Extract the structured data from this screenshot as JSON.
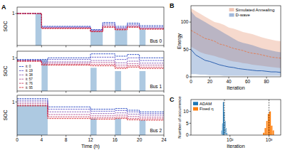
{
  "chart_data": [
    {
      "type": "step",
      "panel": "A",
      "title": "Bus 0",
      "y_label": "SOC",
      "x": [
        0,
        1,
        2,
        3,
        4,
        5,
        6,
        7,
        8,
        9,
        10,
        11,
        12,
        13,
        14,
        15,
        16,
        17,
        18,
        19,
        20,
        21,
        22,
        23,
        24
      ],
      "xlim": [
        0,
        24
      ],
      "ylim": [
        0,
        1.2
      ],
      "xticks": [
        0,
        4,
        8,
        12,
        16,
        20,
        24
      ],
      "yticks": [
        1
      ],
      "tick_labels": "y",
      "line_style": "dashed",
      "charging_periods": [
        {
          "start": 3,
          "end": 4,
          "value": 1.0
        },
        {
          "start": 12,
          "end": 14,
          "value": 0.45
        },
        {
          "start": 16,
          "end": 18,
          "value": 0.5
        },
        {
          "start": 20,
          "end": 21,
          "value": 0.5
        }
      ],
      "series": [
        {
          "color": "#1f3fbf",
          "values": [
            1,
            1,
            1,
            1,
            0.6,
            0.6,
            0.6,
            0.6,
            0.6,
            0.6,
            0.6,
            0.6,
            0.5,
            0.5,
            0.72,
            0.72,
            0.6,
            0.6,
            0.7,
            0.7,
            0.62,
            0.62,
            0.62,
            0.62,
            0.62
          ]
        },
        {
          "color": "#5a54c8",
          "values": [
            1,
            1,
            1,
            1,
            0.58,
            0.58,
            0.58,
            0.58,
            0.58,
            0.58,
            0.58,
            0.58,
            0.48,
            0.48,
            0.68,
            0.68,
            0.56,
            0.56,
            0.66,
            0.66,
            0.58,
            0.58,
            0.58,
            0.58,
            0.58
          ]
        },
        {
          "color": "#8a5ab4",
          "values": [
            1,
            1,
            1,
            1,
            0.56,
            0.56,
            0.56,
            0.56,
            0.56,
            0.56,
            0.56,
            0.56,
            0.46,
            0.46,
            0.64,
            0.64,
            0.54,
            0.54,
            0.62,
            0.62,
            0.55,
            0.55,
            0.55,
            0.55,
            0.55
          ]
        },
        {
          "color": "#b04c90",
          "values": [
            1,
            1,
            1,
            1,
            0.55,
            0.55,
            0.55,
            0.55,
            0.55,
            0.55,
            0.55,
            0.55,
            0.45,
            0.45,
            0.6,
            0.6,
            0.52,
            0.52,
            0.6,
            0.6,
            0.53,
            0.53,
            0.53,
            0.53,
            0.53
          ]
        },
        {
          "color": "#c83a60",
          "values": [
            1,
            1,
            1,
            1,
            0.54,
            0.54,
            0.54,
            0.54,
            0.54,
            0.54,
            0.54,
            0.54,
            0.44,
            0.44,
            0.58,
            0.58,
            0.5,
            0.5,
            0.58,
            0.58,
            0.52,
            0.52,
            0.52,
            0.52,
            0.52
          ]
        },
        {
          "color": "#d4202a",
          "values": [
            1,
            1,
            1,
            1,
            0.53,
            0.53,
            0.53,
            0.53,
            0.53,
            0.53,
            0.53,
            0.53,
            0.43,
            0.43,
            0.57,
            0.57,
            0.49,
            0.49,
            0.57,
            0.57,
            0.51,
            0.51,
            0.51,
            0.51,
            0.51
          ]
        }
      ]
    },
    {
      "type": "step",
      "title": "Bus 1",
      "y_label": "SOC",
      "x": [
        0,
        1,
        2,
        3,
        4,
        5,
        6,
        7,
        8,
        9,
        10,
        11,
        12,
        13,
        14,
        15,
        16,
        17,
        18,
        19,
        20,
        21,
        22,
        23,
        24
      ],
      "xlim": [
        0,
        24
      ],
      "ylim": [
        0,
        1.2
      ],
      "xticks": [
        0,
        4,
        8,
        12,
        16,
        20,
        24
      ],
      "yticks": [
        1
      ],
      "tick_labels": "y",
      "line_style": "dashed",
      "legend": "lower left",
      "charging_periods": [
        {
          "start": 4,
          "end": 5,
          "value": 0.95
        },
        {
          "start": 12,
          "end": 13,
          "value": 0.7
        },
        {
          "start": 16,
          "end": 17,
          "value": 0.6
        },
        {
          "start": 20,
          "end": 21,
          "value": 0.6
        }
      ],
      "series": [
        {
          "name": "it: 0",
          "color": "#1f3fbf",
          "values": [
            0.95,
            0.95,
            0.95,
            0.95,
            0.95,
            1,
            1,
            1,
            1,
            1,
            1,
            1,
            1.12,
            1.12,
            1.12,
            1.12,
            1.05,
            1.05,
            1.1,
            1.1,
            1,
            1,
            1,
            1,
            1
          ]
        },
        {
          "name": "it: 19",
          "color": "#5a54c8",
          "values": [
            0.93,
            0.93,
            0.93,
            0.93,
            0.9,
            0.95,
            0.95,
            0.95,
            0.95,
            0.95,
            0.95,
            0.95,
            1.02,
            1.02,
            1.02,
            1.02,
            0.95,
            0.95,
            1,
            1,
            0.92,
            0.92,
            0.92,
            0.92,
            0.92
          ]
        },
        {
          "name": "it: 38",
          "color": "#8a5ab4",
          "values": [
            0.92,
            0.92,
            0.92,
            0.92,
            0.86,
            0.88,
            0.88,
            0.88,
            0.88,
            0.88,
            0.88,
            0.88,
            0.92,
            0.92,
            0.92,
            0.92,
            0.85,
            0.85,
            0.9,
            0.9,
            0.84,
            0.84,
            0.84,
            0.84,
            0.84
          ]
        },
        {
          "name": "it: 57",
          "color": "#b04c90",
          "values": [
            0.91,
            0.91,
            0.91,
            0.91,
            0.83,
            0.84,
            0.84,
            0.84,
            0.84,
            0.84,
            0.84,
            0.84,
            0.86,
            0.86,
            0.86,
            0.86,
            0.78,
            0.78,
            0.82,
            0.82,
            0.78,
            0.78,
            0.78,
            0.78,
            0.78
          ]
        },
        {
          "name": "it: 76",
          "color": "#c83a60",
          "values": [
            0.9,
            0.9,
            0.9,
            0.9,
            0.8,
            0.8,
            0.8,
            0.8,
            0.8,
            0.8,
            0.8,
            0.8,
            0.8,
            0.8,
            0.8,
            0.8,
            0.72,
            0.72,
            0.76,
            0.76,
            0.72,
            0.72,
            0.72,
            0.72,
            0.72
          ]
        },
        {
          "name": "it: 95",
          "color": "#d4202a",
          "values": [
            0.9,
            0.9,
            0.9,
            0.9,
            0.78,
            0.78,
            0.78,
            0.78,
            0.78,
            0.78,
            0.78,
            0.78,
            0.76,
            0.76,
            0.76,
            0.76,
            0.68,
            0.68,
            0.72,
            0.72,
            0.68,
            0.68,
            0.68,
            0.68,
            0.68
          ]
        }
      ]
    },
    {
      "type": "step",
      "title": "Bus 2",
      "y_label": "SOC",
      "x_label": "Time (h)",
      "x": [
        0,
        1,
        2,
        3,
        4,
        5,
        6,
        7,
        8,
        9,
        10,
        11,
        12,
        13,
        14,
        15,
        16,
        17,
        18,
        19,
        20,
        21,
        22,
        23,
        24
      ],
      "xlim": [
        0,
        24
      ],
      "ylim": [
        0,
        1.2
      ],
      "xticks": [
        0,
        4,
        8,
        12,
        16,
        20,
        24
      ],
      "yticks": [
        1
      ],
      "line_style": "dashed",
      "charging_periods": [
        {
          "start": 0,
          "end": 5,
          "value": 0.9
        },
        {
          "start": 12,
          "end": 13,
          "value": 0.5
        },
        {
          "start": 16,
          "end": 17,
          "value": 0.5
        },
        {
          "start": 20,
          "end": 21,
          "value": 0.45
        }
      ],
      "series": [
        {
          "color": "#1f3fbf",
          "values": [
            1.1,
            1.1,
            1.1,
            1.1,
            1.1,
            0.85,
            0.85,
            0.85,
            0.85,
            0.85,
            0.85,
            0.85,
            0.78,
            0.78,
            0.78,
            0.78,
            0.8,
            0.8,
            0.75,
            0.75,
            0.7,
            0.7,
            0.7,
            0.7,
            0.7
          ]
        },
        {
          "color": "#5a54c8",
          "values": [
            1.05,
            1.05,
            1.05,
            1.05,
            1.05,
            0.78,
            0.78,
            0.78,
            0.78,
            0.78,
            0.78,
            0.78,
            0.72,
            0.72,
            0.72,
            0.72,
            0.74,
            0.74,
            0.7,
            0.7,
            0.65,
            0.65,
            0.65,
            0.65,
            0.65
          ]
        },
        {
          "color": "#8a5ab4",
          "values": [
            1,
            1,
            1,
            1,
            1,
            0.7,
            0.7,
            0.7,
            0.7,
            0.7,
            0.7,
            0.7,
            0.65,
            0.65,
            0.65,
            0.65,
            0.67,
            0.67,
            0.63,
            0.63,
            0.6,
            0.6,
            0.6,
            0.6,
            0.6
          ]
        },
        {
          "color": "#b04c90",
          "values": [
            0.95,
            0.95,
            0.95,
            0.95,
            0.95,
            0.62,
            0.62,
            0.62,
            0.62,
            0.62,
            0.62,
            0.62,
            0.58,
            0.58,
            0.58,
            0.58,
            0.6,
            0.6,
            0.56,
            0.56,
            0.54,
            0.54,
            0.54,
            0.54,
            0.54
          ]
        },
        {
          "color": "#c83a60",
          "values": [
            0.9,
            0.9,
            0.9,
            0.9,
            0.9,
            0.55,
            0.55,
            0.55,
            0.55,
            0.55,
            0.55,
            0.55,
            0.52,
            0.52,
            0.52,
            0.52,
            0.54,
            0.54,
            0.5,
            0.5,
            0.49,
            0.49,
            0.49,
            0.49,
            0.49
          ]
        },
        {
          "color": "#d4202a",
          "values": [
            0.88,
            0.88,
            0.88,
            0.88,
            0.88,
            0.5,
            0.5,
            0.5,
            0.5,
            0.5,
            0.5,
            0.5,
            0.48,
            0.48,
            0.48,
            0.48,
            0.5,
            0.5,
            0.46,
            0.46,
            0.45,
            0.45,
            0.45,
            0.45,
            0.45
          ]
        }
      ]
    },
    {
      "type": "line",
      "panel": "B",
      "x_label": "Iteration",
      "y_label": "Energy",
      "x": [
        0,
        5,
        10,
        15,
        20,
        25,
        30,
        35,
        40,
        45,
        50,
        55,
        60,
        65,
        70,
        75,
        80,
        85,
        90,
        95
      ],
      "xlim": [
        0,
        95
      ],
      "ylim": [
        0,
        130
      ],
      "xticks": [
        0,
        20,
        40,
        60,
        80
      ],
      "yticks": [
        0,
        50,
        100
      ],
      "legend": "upper right",
      "series": [
        {
          "name": "Simulated Annealing",
          "color": "#e0805a",
          "line_style": "dashed",
          "values": [
            85,
            80,
            75,
            70,
            68,
            65,
            60,
            58,
            55,
            52,
            50,
            48,
            45,
            43,
            42,
            40,
            38,
            36,
            35,
            34
          ],
          "lower": [
            55,
            50,
            45,
            42,
            40,
            38,
            35,
            33,
            30,
            28,
            27,
            25,
            24,
            22,
            21,
            20,
            19,
            18,
            17,
            16
          ],
          "upper": [
            125,
            120,
            115,
            110,
            105,
            100,
            98,
            95,
            90,
            88,
            85,
            82,
            80,
            78,
            75,
            72,
            70,
            68,
            66,
            65
          ]
        },
        {
          "name": "D-wave",
          "color": "#2e62b0",
          "values": [
            50,
            40,
            35,
            30,
            28,
            25,
            22,
            20,
            18,
            17,
            15,
            14,
            13,
            12,
            11,
            11,
            10,
            9,
            9,
            8
          ],
          "lower": [
            5,
            5,
            4,
            4,
            3,
            3,
            3,
            2,
            2,
            2,
            2,
            2,
            2,
            2,
            2,
            2,
            2,
            2,
            2,
            2
          ],
          "upper": [
            120,
            110,
            105,
            100,
            95,
            90,
            85,
            80,
            75,
            70,
            65,
            62,
            60,
            58,
            55,
            52,
            50,
            48,
            46,
            45
          ]
        }
      ]
    },
    {
      "type": "histogram",
      "panel": "C",
      "x_label": "Iteration",
      "y_label": "Number of occurrence",
      "log": "x",
      "xlim": [
        10,
        2000
      ],
      "ylim": [
        0,
        15
      ],
      "xticks": [
        {
          "value": 100,
          "label": "10²"
        },
        {
          "value": 1000,
          "label": "10³"
        }
      ],
      "yticks": [
        0,
        5,
        10
      ],
      "legend": "upper left",
      "series": [
        {
          "name": "ADAM",
          "color": "#1f77b4",
          "bins": [
            60,
            63,
            66,
            70,
            73,
            77,
            81,
            85
          ],
          "values": [
            2,
            5,
            14,
            10,
            6,
            3,
            1
          ],
          "mean": 72
        },
        {
          "name": "Fixed η",
          "color": "#ff7f0e",
          "bins": [
            700,
            770,
            850,
            930,
            1020,
            1120,
            1230,
            1350
          ],
          "values": [
            1,
            3,
            6,
            9,
            10,
            4,
            2
          ],
          "mean": 1000
        }
      ]
    }
  ]
}
